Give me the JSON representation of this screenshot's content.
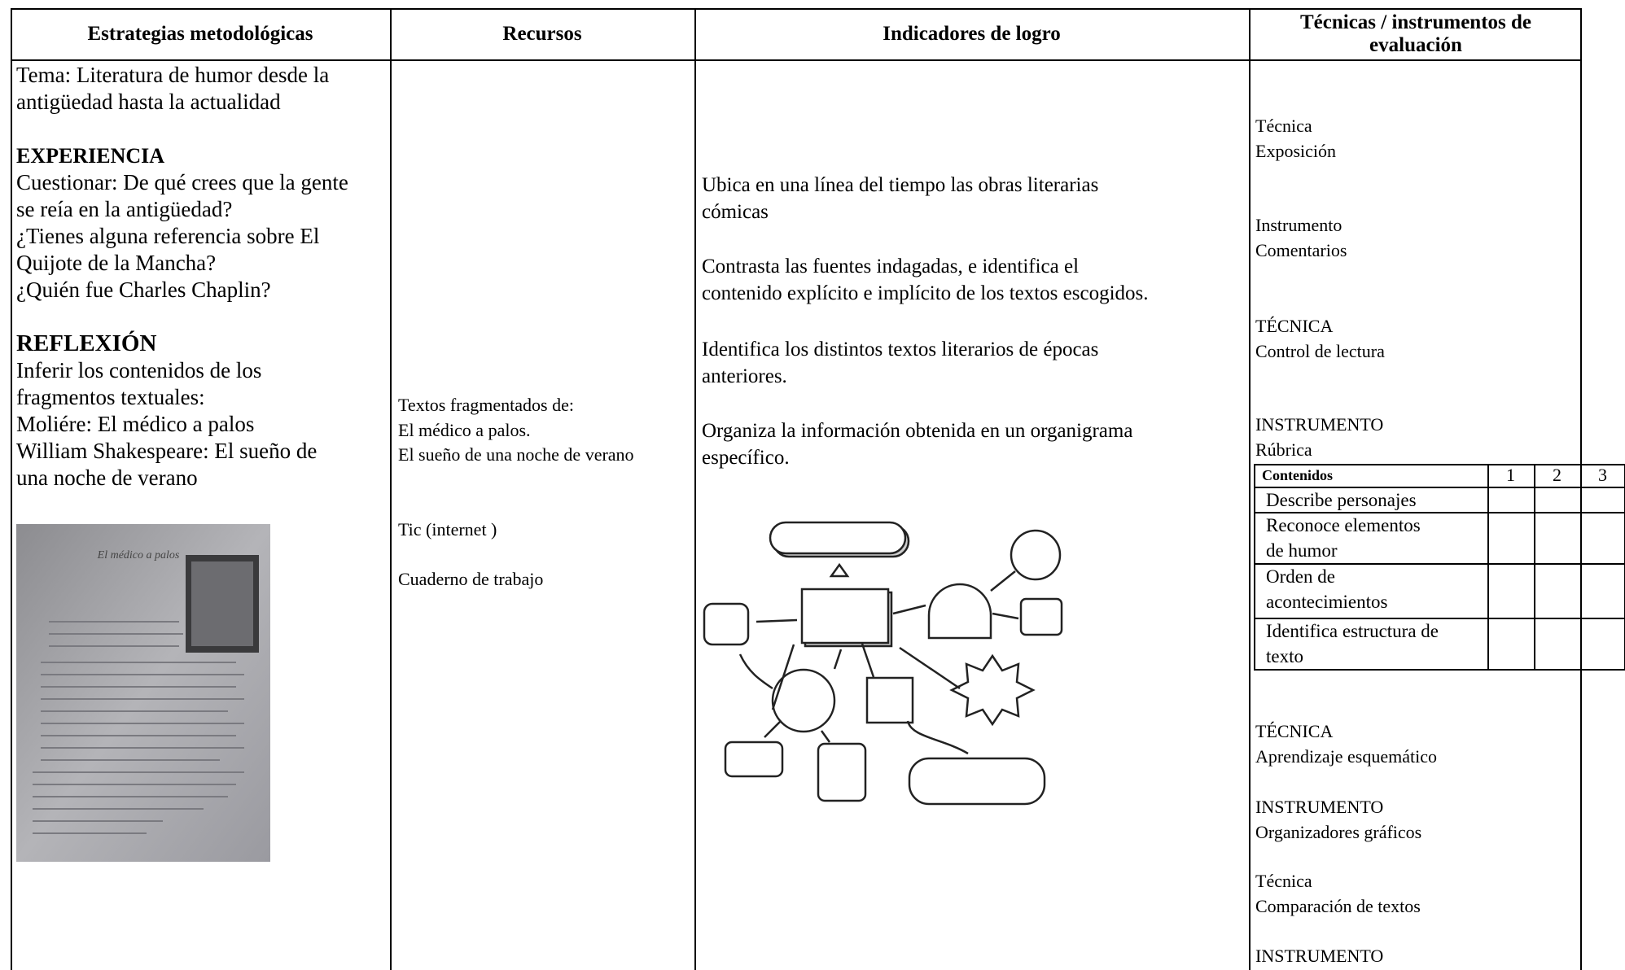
{
  "table": {
    "headers": [
      "Estrategias metodológicas",
      "Recursos",
      "Indicadores de logro",
      "Técnicas / instrumentos de evaluación"
    ],
    "strategies": [
      {
        "lines": [
          "Tema: Literatura de humor desde la",
          "antigüedad hasta la actualidad"
        ]
      },
      {
        "heading": "EXPERIENCIA",
        "lines": [
          "Cuestionar: De qué crees que la gente",
          "se reía en la antigüedad?",
          "¿Tienes alguna referencia sobre El",
          "Quijote de la Mancha?",
          "¿Quién fue Charles Chaplin?"
        ]
      },
      {
        "heading": "REFLEXIÓN",
        "lines": [
          "Inferir los contenidos de los",
          "fragmentos textuales:",
          "Moliére: El médico a palos",
          "William Shakespeare: El sueño de",
          "una noche de verano"
        ]
      }
    ],
    "photo_title": "El médico a palos",
    "resources": [
      {
        "lines": [
          "Textos fragmentados de:",
          "El médico a palos.",
          "El sueño de una noche de verano"
        ]
      },
      {
        "lines": [
          "Tic (internet )"
        ]
      },
      {
        "lines": [
          "Cuaderno de trabajo"
        ]
      }
    ],
    "indicators": [
      {
        "lines": [
          "Ubica en una línea del tiempo las obras literarias",
          "cómicas"
        ]
      },
      {
        "lines": [
          "Contrasta las fuentes indagadas, e identifica el",
          "contenido explícito e implícito de los textos escogidos."
        ]
      },
      {
        "lines": [
          "Identifica los distintos textos literarios de épocas",
          "anteriores."
        ]
      },
      {
        "lines": [
          "Organiza la información obtenida en un organigrama",
          "específico."
        ]
      }
    ],
    "evaluation": [
      {
        "lines": [
          "Técnica",
          "Exposición"
        ]
      },
      {
        "lines": [
          "Instrumento",
          "Comentarios"
        ]
      },
      {
        "lines": [
          "TÉCNICA",
          "Control de lectura"
        ]
      },
      {
        "lines": [
          "INSTRUMENTO",
          "Rúbrica"
        ]
      },
      {
        "lines": [
          "TÉCNICA",
          "Aprendizaje esquemático"
        ]
      },
      {
        "lines": [
          "INSTRUMENTO",
          "Organizadores gráficos"
        ]
      },
      {
        "lines": [
          "Técnica",
          "Comparación de textos"
        ]
      },
      {
        "lines": [
          "INSTRUMENTO"
        ]
      }
    ],
    "rubric": {
      "header": [
        "Contenidos",
        "1",
        "2",
        "3"
      ],
      "rows": [
        [
          "Describe personajes"
        ],
        [
          "Reconoce elementos",
          "de humor"
        ],
        [
          "Orden de",
          "acontecimientos"
        ],
        [
          "Identifica estructura de",
          "texto"
        ]
      ]
    }
  }
}
